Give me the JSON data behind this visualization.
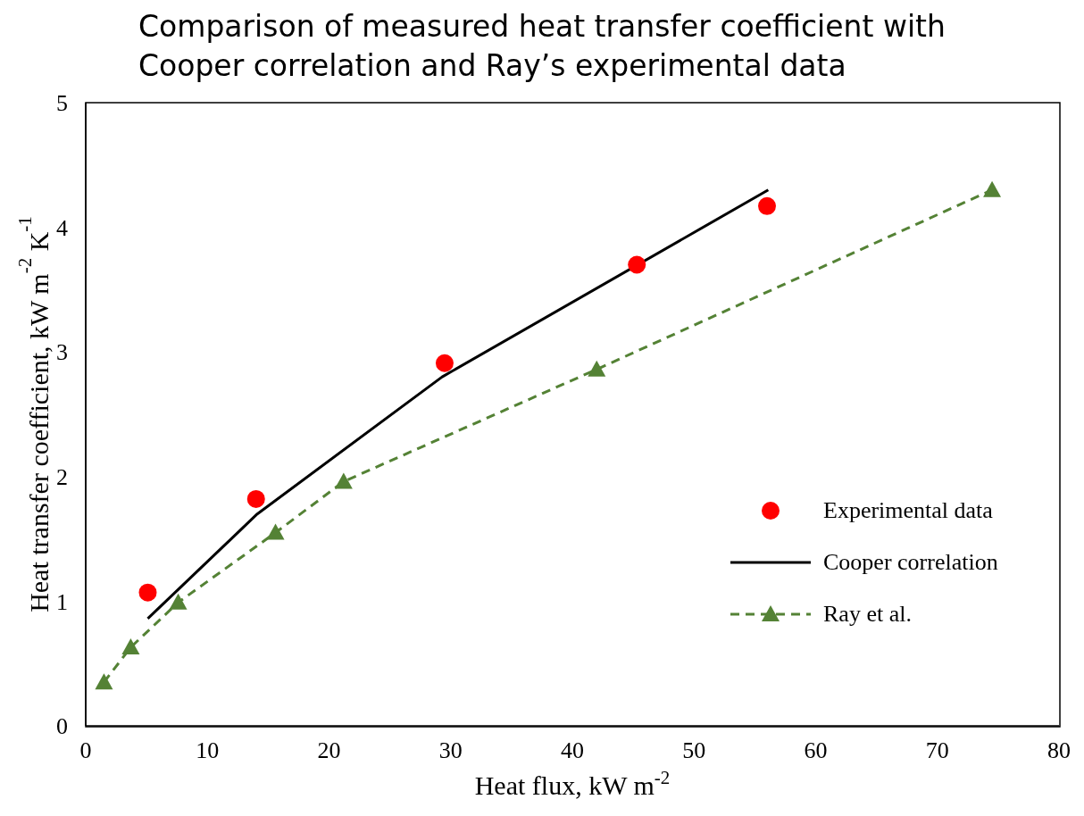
{
  "chart_data": {
    "type": "line",
    "title": "Comparison of measured heat transfer coefficient with Cooper correlation and Ray’s experimental data",
    "xlabel": "Heat flux, kW m$^{-2}$",
    "ylabel": "Heat transfer coefficient, kW m$^{-2}$ K$^{-1}$",
    "xlim": [
      0,
      80
    ],
    "xticks": [
      0,
      10,
      20,
      30,
      40,
      50,
      60,
      70,
      80
    ],
    "ylim": [
      0,
      5
    ],
    "yticks": [
      0,
      1,
      2,
      3,
      4,
      5
    ],
    "grid": false,
    "legend": "right",
    "series": [
      {
        "name": "Experimental data",
        "type": "scatter",
        "color": "#ff0000",
        "marker": "circle",
        "x": [
          5.1,
          14.0,
          29.5,
          45.3,
          56.0
        ],
        "values": [
          1.07,
          1.82,
          2.91,
          3.7,
          4.17
        ]
      },
      {
        "name": "Cooper correlation",
        "type": "line",
        "color": "#000000",
        "marker": "none",
        "line_style": "solid",
        "x": [
          5.1,
          14.1,
          29.3,
          56.1
        ],
        "values": [
          0.86,
          1.7,
          2.8,
          4.3
        ]
      },
      {
        "name": "Ray et al.",
        "type": "line",
        "color": "#548235",
        "marker": "triangle",
        "line_style": "dashed",
        "x": [
          1.5,
          3.7,
          7.6,
          15.6,
          21.2,
          42.0,
          74.5
        ],
        "values": [
          0.35,
          0.63,
          0.99,
          1.55,
          1.96,
          2.86,
          4.3
        ]
      }
    ]
  }
}
